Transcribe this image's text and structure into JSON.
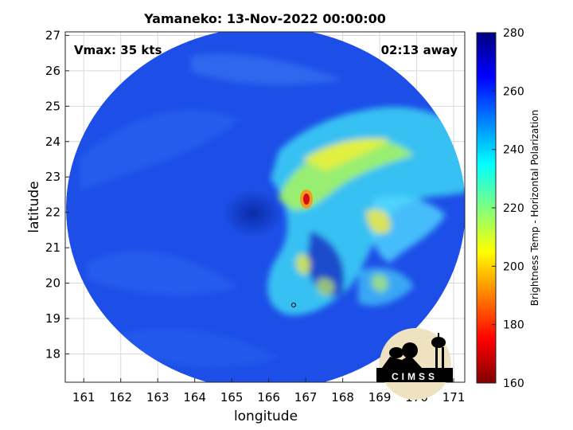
{
  "title": "Yamaneko: 13-Nov-2022 00:00:00",
  "annotations": {
    "vmax": "Vmax: 35 kts",
    "away": "02:13 away"
  },
  "logo": {
    "text": "CIMSS"
  },
  "chart_data": {
    "type": "heatmap",
    "title": "Yamaneko: 13-Nov-2022 00:00:00",
    "xlabel": "longitude",
    "ylabel": "latitude",
    "xlim": [
      160.5,
      171.3
    ],
    "ylim": [
      17.2,
      27.1
    ],
    "x_ticks": [
      "161",
      "162",
      "163",
      "164",
      "165",
      "166",
      "167",
      "168",
      "169",
      "170",
      "171"
    ],
    "y_ticks": [
      "18",
      "19",
      "20",
      "21",
      "22",
      "23",
      "24",
      "25",
      "26",
      "27"
    ],
    "grid": true,
    "colorbar": {
      "label": "Brightness Temp - Horizontal Polarization",
      "range": [
        160,
        280
      ],
      "ticks": [
        "160",
        "180",
        "200",
        "220",
        "240",
        "260",
        "280"
      ],
      "colormap": "jet"
    },
    "storm_center": {
      "lon": 166.1,
      "lat": 22.2
    },
    "cold_core": {
      "lon": 166.95,
      "lat": 22.35,
      "value": 170
    }
  }
}
